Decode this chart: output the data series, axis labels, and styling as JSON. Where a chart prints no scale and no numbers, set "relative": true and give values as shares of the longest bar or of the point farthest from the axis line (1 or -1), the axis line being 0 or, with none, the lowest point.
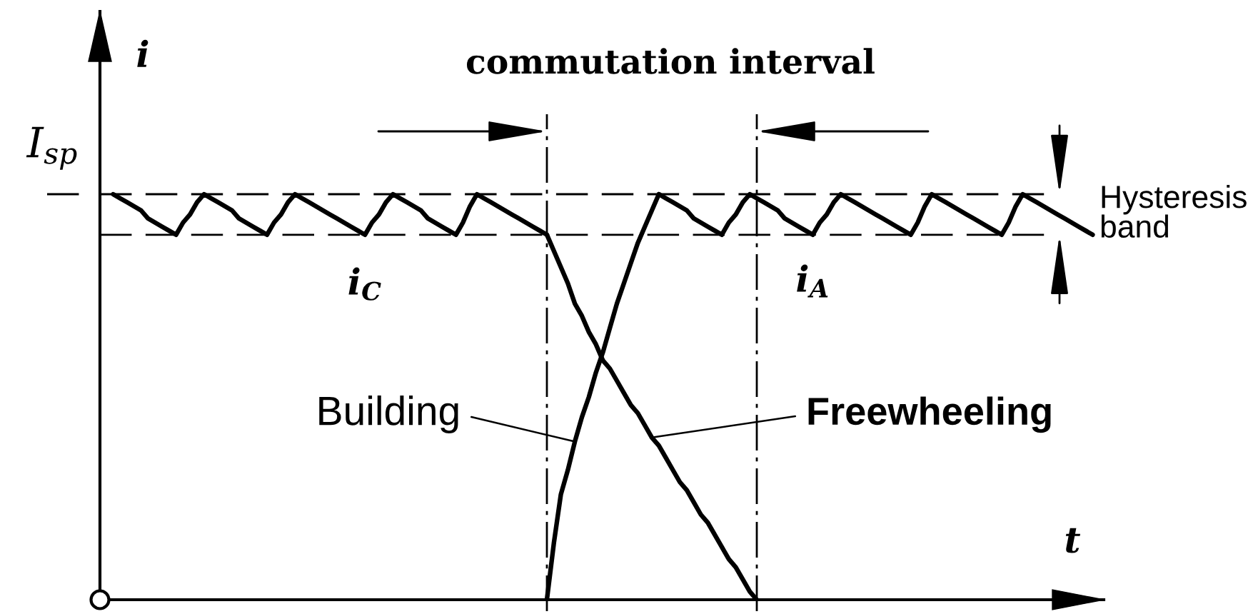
{
  "chart_data": {
    "type": "line",
    "relative": true,
    "xlabel": "t",
    "ylabel": "i",
    "categories": [
      null,
      null,
      null,
      null,
      null,
      null,
      null,
      null,
      null,
      null,
      null,
      null,
      null,
      null,
      null,
      null,
      null,
      null,
      null,
      null,
      null,
      null,
      null,
      null,
      null,
      null,
      null,
      null,
      null,
      null,
      null,
      null,
      null,
      null,
      null,
      null,
      null,
      null,
      null,
      null,
      null,
      null,
      null,
      null,
      null,
      null,
      null,
      null,
      null,
      null,
      null,
      null,
      null,
      null,
      null,
      null,
      null,
      null,
      null,
      null,
      null,
      null,
      null,
      null,
      null,
      null,
      null,
      null,
      null,
      null,
      null,
      null,
      null,
      null,
      null,
      null,
      null,
      null,
      null,
      null,
      null,
      null,
      null,
      null,
      null,
      null,
      null,
      null,
      null,
      null,
      null,
      null,
      null,
      null,
      null,
      null,
      null,
      null,
      null,
      null,
      null,
      null,
      null,
      null,
      null,
      null,
      null,
      null,
      null,
      null,
      null,
      null,
      null,
      null,
      null,
      null,
      null,
      null,
      null,
      null,
      null,
      null,
      null,
      null,
      null,
      null,
      null,
      null,
      null,
      null,
      null,
      null,
      null,
      null,
      null,
      null,
      null,
      null,
      null,
      null,
      null
    ],
    "series": [
      {
        "name": "i$_{C}$",
        "color": "#000000",
        "values": [
          1.0,
          0.99,
          0.98,
          0.97,
          0.96,
          0.94,
          0.93,
          0.92,
          0.91,
          0.9,
          0.93,
          0.95,
          0.98,
          1.0,
          0.99,
          0.98,
          0.97,
          0.96,
          0.94,
          0.93,
          0.92,
          0.91,
          0.9,
          0.93,
          0.95,
          0.98,
          1.0,
          0.99,
          0.98,
          0.97,
          0.96,
          0.95,
          0.94,
          0.93,
          0.92,
          0.91,
          0.9,
          0.93,
          0.95,
          0.98,
          1.0,
          0.99,
          0.98,
          0.97,
          0.96,
          0.94,
          0.93,
          0.92,
          0.91,
          0.9,
          0.93,
          0.97,
          1.0,
          0.99,
          0.98,
          0.97,
          0.96,
          0.95,
          0.94,
          0.93,
          0.92,
          0.91,
          0.9,
          null,
          null,
          null,
          null,
          null,
          null,
          null,
          null,
          null,
          null,
          null,
          null,
          null,
          null,
          null,
          null,
          null,
          null,
          null,
          null,
          null,
          null,
          null,
          null,
          null,
          null,
          null,
          null,
          null,
          null,
          null,
          null,
          null,
          null,
          null,
          null,
          null,
          null,
          null,
          null,
          null,
          null,
          null,
          null,
          null,
          null,
          null,
          null,
          null,
          null,
          null,
          null,
          null,
          null,
          null,
          null,
          null,
          null,
          null,
          null,
          null,
          null,
          null,
          null,
          null,
          null,
          null,
          null,
          null,
          null,
          null,
          null,
          null,
          null,
          null,
          null,
          null,
          null
        ]
      },
      {
        "name": "Freewheeling",
        "color": "#000000",
        "values": [
          null,
          null,
          null,
          null,
          null,
          null,
          null,
          null,
          null,
          null,
          null,
          null,
          null,
          null,
          null,
          null,
          null,
          null,
          null,
          null,
          null,
          null,
          null,
          null,
          null,
          null,
          null,
          null,
          null,
          null,
          null,
          null,
          null,
          null,
          null,
          null,
          null,
          null,
          null,
          null,
          null,
          null,
          null,
          null,
          null,
          null,
          null,
          null,
          null,
          null,
          null,
          null,
          null,
          null,
          null,
          null,
          null,
          null,
          null,
          null,
          null,
          null,
          0.9,
          0.86,
          0.82,
          0.78,
          0.73,
          0.7,
          0.66,
          0.63,
          0.59,
          0.57,
          0.54,
          0.51,
          0.48,
          0.46,
          0.43,
          0.4,
          0.38,
          0.35,
          0.32,
          0.29,
          0.27,
          0.24,
          0.21,
          0.19,
          0.16,
          0.13,
          0.1,
          0.08,
          0.05,
          0.02,
          0,
          null,
          null,
          null,
          null,
          null,
          null,
          null,
          null,
          null,
          null,
          null,
          null,
          null,
          null,
          null,
          null,
          null,
          null,
          null,
          null,
          null,
          null,
          null,
          null,
          null,
          null,
          null,
          null,
          null,
          null,
          null,
          null,
          null,
          null,
          null,
          null,
          null,
          null,
          null,
          null,
          null,
          null,
          null,
          null,
          null,
          null,
          null,
          null
        ]
      },
      {
        "name": "Building",
        "color": "#000000",
        "values": [
          null,
          null,
          null,
          null,
          null,
          null,
          null,
          null,
          null,
          null,
          null,
          null,
          null,
          null,
          null,
          null,
          null,
          null,
          null,
          null,
          null,
          null,
          null,
          null,
          null,
          null,
          null,
          null,
          null,
          null,
          null,
          null,
          null,
          null,
          null,
          null,
          null,
          null,
          null,
          null,
          null,
          null,
          null,
          null,
          null,
          null,
          null,
          null,
          null,
          null,
          null,
          null,
          null,
          null,
          null,
          null,
          null,
          null,
          null,
          null,
          null,
          null,
          0,
          0.14,
          0.26,
          0.32,
          0.39,
          0.45,
          0.5,
          0.56,
          0.61,
          0.67,
          0.73,
          0.78,
          0.83,
          0.88,
          0.92,
          0.96,
          1.0,
          null,
          null,
          null,
          null,
          null,
          null,
          null,
          null,
          null,
          null,
          null,
          null,
          null,
          null,
          null,
          null,
          null,
          null,
          null,
          null,
          null,
          null,
          null,
          null,
          null,
          null,
          null,
          null,
          null,
          null,
          null,
          null,
          null,
          null,
          null,
          null,
          null,
          null,
          null,
          null,
          null,
          null,
          null,
          null,
          null,
          null,
          null,
          null,
          null,
          null,
          null,
          null,
          null,
          null,
          null,
          null,
          null,
          null,
          null,
          null,
          null,
          null
        ]
      },
      {
        "name": "i$_{A}$",
        "color": "#000000",
        "values": [
          null,
          null,
          null,
          null,
          null,
          null,
          null,
          null,
          null,
          null,
          null,
          null,
          null,
          null,
          null,
          null,
          null,
          null,
          null,
          null,
          null,
          null,
          null,
          null,
          null,
          null,
          null,
          null,
          null,
          null,
          null,
          null,
          null,
          null,
          null,
          null,
          null,
          null,
          null,
          null,
          null,
          null,
          null,
          null,
          null,
          null,
          null,
          null,
          null,
          null,
          null,
          null,
          null,
          null,
          null,
          null,
          null,
          null,
          null,
          null,
          null,
          null,
          null,
          null,
          null,
          null,
          null,
          null,
          null,
          null,
          null,
          null,
          null,
          null,
          null,
          null,
          null,
          null,
          1.0,
          0.99,
          0.98,
          0.97,
          0.96,
          0.94,
          0.93,
          0.92,
          0.91,
          0.9,
          0.93,
          0.95,
          0.98,
          1.0,
          0.99,
          0.98,
          0.97,
          0.96,
          0.94,
          0.93,
          0.92,
          0.91,
          0.9,
          0.93,
          0.95,
          0.98,
          1.0,
          0.99,
          0.98,
          0.97,
          0.96,
          0.95,
          0.94,
          0.93,
          0.92,
          0.91,
          0.9,
          0.93,
          0.97,
          1.0,
          0.99,
          0.98,
          0.97,
          0.96,
          0.95,
          0.94,
          0.93,
          0.92,
          0.91,
          0.9,
          0.93,
          0.97,
          1.0,
          0.99,
          0.98,
          0.97,
          0.96,
          0.95,
          0.94,
          0.93,
          0.92,
          0.91,
          0.9
        ]
      }
    ],
    "ref_lines": [
      {
        "axis": "y",
        "value": 1.0,
        "label": "I$_{sp}$",
        "line_style": "dashed"
      },
      {
        "axis": "y",
        "value": 0.9,
        "line_style": "dashed"
      }
    ],
    "annotations": [
      "commutation interval",
      "Hysteresis band"
    ]
  }
}
